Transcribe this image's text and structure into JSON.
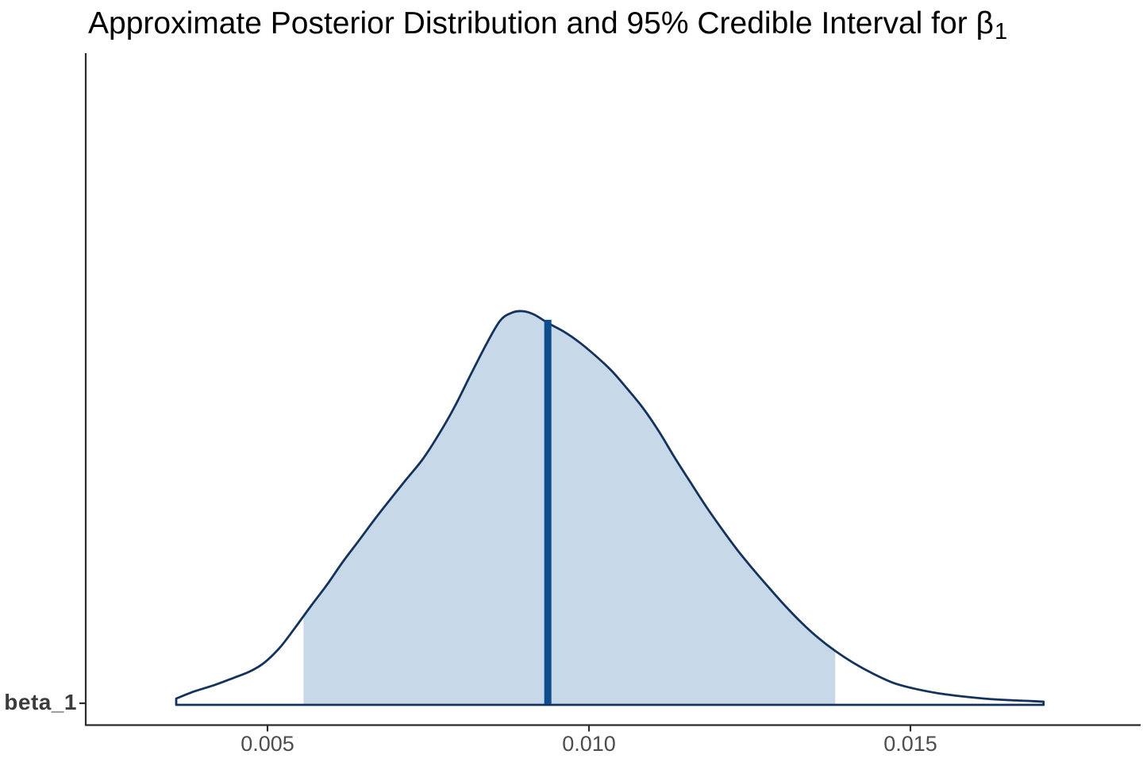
{
  "title": {
    "text": "Approximate Posterior Distribution and 95% Credible Interval for ",
    "symbol": "β",
    "subscript": "1"
  },
  "chart_data": {
    "type": "area",
    "subtype": "density",
    "title": "Approximate Posterior Distribution and 95% Credible Interval for β₁",
    "xlabel": "",
    "ylabel": "",
    "y_category_label": "beta_1",
    "x_ticks": [
      {
        "value": 0.005,
        "label": "0.005"
      },
      {
        "value": 0.01,
        "label": "0.010"
      },
      {
        "value": 0.015,
        "label": "0.015"
      }
    ],
    "x_range": [
      0.00217,
      0.01858
    ],
    "grid": "off",
    "legend": "none",
    "credible_interval": {
      "level": "95%",
      "lower": 0.00556,
      "upper": 0.01383
    },
    "point_estimate": 0.00936,
    "curve": {
      "x": [
        0.00358,
        0.00386,
        0.00417,
        0.00448,
        0.00473,
        0.00495,
        0.00519,
        0.00543,
        0.00568,
        0.00593,
        0.00617,
        0.00642,
        0.00667,
        0.00691,
        0.00716,
        0.00741,
        0.00765,
        0.0079,
        0.00815,
        0.0084,
        0.00862,
        0.0088,
        0.00896,
        0.00914,
        0.00936,
        0.00961,
        0.00985,
        0.0101,
        0.01035,
        0.01059,
        0.01084,
        0.01109,
        0.01133,
        0.01158,
        0.01183,
        0.01207,
        0.01232,
        0.01257,
        0.01282,
        0.01306,
        0.01331,
        0.01356,
        0.01383,
        0.01411,
        0.01442,
        0.01473,
        0.01504,
        0.01541,
        0.01578,
        0.01615,
        0.01652,
        0.01683,
        0.01707
      ],
      "density": [
        0.016,
        0.034,
        0.05,
        0.069,
        0.085,
        0.107,
        0.145,
        0.196,
        0.252,
        0.306,
        0.363,
        0.417,
        0.472,
        0.522,
        0.573,
        0.623,
        0.683,
        0.754,
        0.835,
        0.915,
        0.976,
        0.996,
        1.0,
        0.992,
        0.97,
        0.948,
        0.921,
        0.887,
        0.849,
        0.804,
        0.754,
        0.694,
        0.629,
        0.565,
        0.502,
        0.446,
        0.391,
        0.341,
        0.294,
        0.25,
        0.208,
        0.171,
        0.137,
        0.107,
        0.079,
        0.056,
        0.042,
        0.03,
        0.022,
        0.016,
        0.012,
        0.01,
        0.008
      ]
    },
    "colors": {
      "fill": "#C7D9E8",
      "curve_line": "#14335C",
      "point_estimate_line": "#0E4D8D",
      "axis": "#2b2b2b",
      "tick_text": "#4d4d4d",
      "y_label_text": "#3c3c3c"
    }
  }
}
